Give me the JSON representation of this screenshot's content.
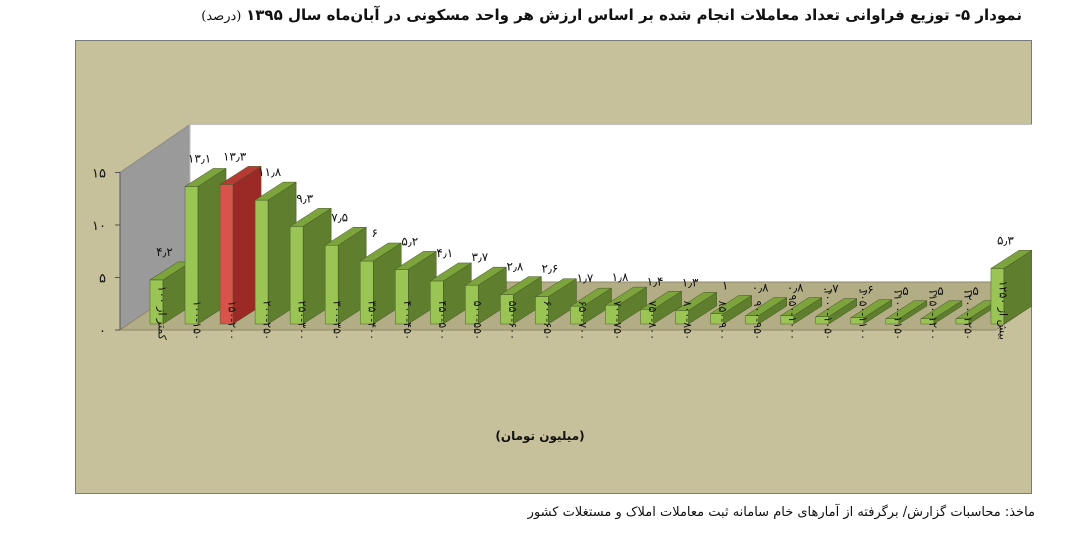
{
  "title": {
    "main": "نمودار ۵- توزیع فراوانی تعداد معاملات انجام شده بر اساس ارزش هر واحد مسکونی در آبان‌ماه سال ۱۳۹۵",
    "unit": "(درصد)"
  },
  "source_note": "ماخذ: محاسبات گزارش/ برگرفته از آمارهای خام سامانه ثبت معاملات املاک و مستغلات کشور",
  "colors": {
    "background": "#c7c19b",
    "bar_front": "#9ac555",
    "bar_side": "#5f7e2e",
    "bar_top": "#7da33c",
    "highlight_front": "#d9524c",
    "highlight_side": "#9b2a26",
    "highlight_top": "#b93a35",
    "back_wall": "#ffffff",
    "side_wall": "#9a9a9a",
    "floor": "#b3ad86"
  },
  "chart_data": {
    "type": "bar",
    "title": "نمودار ۵- توزیع فراوانی تعداد معاملات انجام شده بر اساس ارزش هر واحد مسکونی در آبان‌ماه سال ۱۳۹۵ (درصد)",
    "xlabel": "(میلیون تومان)",
    "ylabel": "",
    "ylim": [
      0,
      15
    ],
    "yticks": [
      0,
      5,
      10,
      15
    ],
    "ytick_labels": [
      "۰",
      "۵",
      "۱۰",
      "۱۵"
    ],
    "grid": false,
    "three_d": true,
    "highlight_index": 2,
    "categories": [
      "کمتر از ۱۰۰",
      "۱۰۰-۱۵۰",
      "۱۵۰-۲۰۰",
      "۲۰۰-۲۵۰",
      "۲۵۰-۳۰۰",
      "۳۰۰-۳۵۰",
      "۳۵۰-۴۰۰",
      "۴۰۰-۴۵۰",
      "۴۵۰-۵۰۰",
      "۵۰۰-۵۵۰",
      "۵۵۰-۶۰۰",
      "۶۰۰-۶۵۰",
      "۶۵۰-۷۰۰",
      "۷۰۰-۷۵۰",
      "۷۵۰-۸۰۰",
      "۸۰۰-۸۵۰",
      "۸۵۰-۹۰۰",
      "۹۰۰-۹۵۰",
      "۹۵۰-۱۰۰۰",
      "۱۰۰۰-۱۰۵۰",
      "۱۰۵۰-۱۱۰۰",
      "۱۱۰۰-۱۱۵۰",
      "۱۱۵۰-۱۲۰۰",
      "۱۲۰۰-۱۲۵۰",
      "بیش از ۱۲۵۰"
    ],
    "values": [
      4.2,
      13.1,
      13.3,
      11.8,
      9.3,
      7.5,
      6,
      5.2,
      4.1,
      3.7,
      2.8,
      2.6,
      1.7,
      1.8,
      1.4,
      1.3,
      1,
      0.8,
      0.8,
      0.7,
      0.6,
      0.5,
      0.5,
      0.5,
      5.3
    ],
    "data_labels": [
      "۴٫۲",
      "۱۳٫۱",
      "۱۳٫۳",
      "۱۱٫۸",
      "۹٫۳",
      "۷٫۵",
      "۶",
      "۵٫۲",
      "۴٫۱",
      "۳٫۷",
      "۲٫۸",
      "۲٫۶",
      "۱٫۷",
      "۱٫۸",
      "۱٫۴",
      "۱٫۳",
      "۱",
      "۰٫۸",
      "۰٫۸",
      "۰٫۷",
      "۰٫۶",
      "۰٫۵",
      "۰٫۵",
      "۰٫۵",
      "۵٫۳"
    ]
  }
}
